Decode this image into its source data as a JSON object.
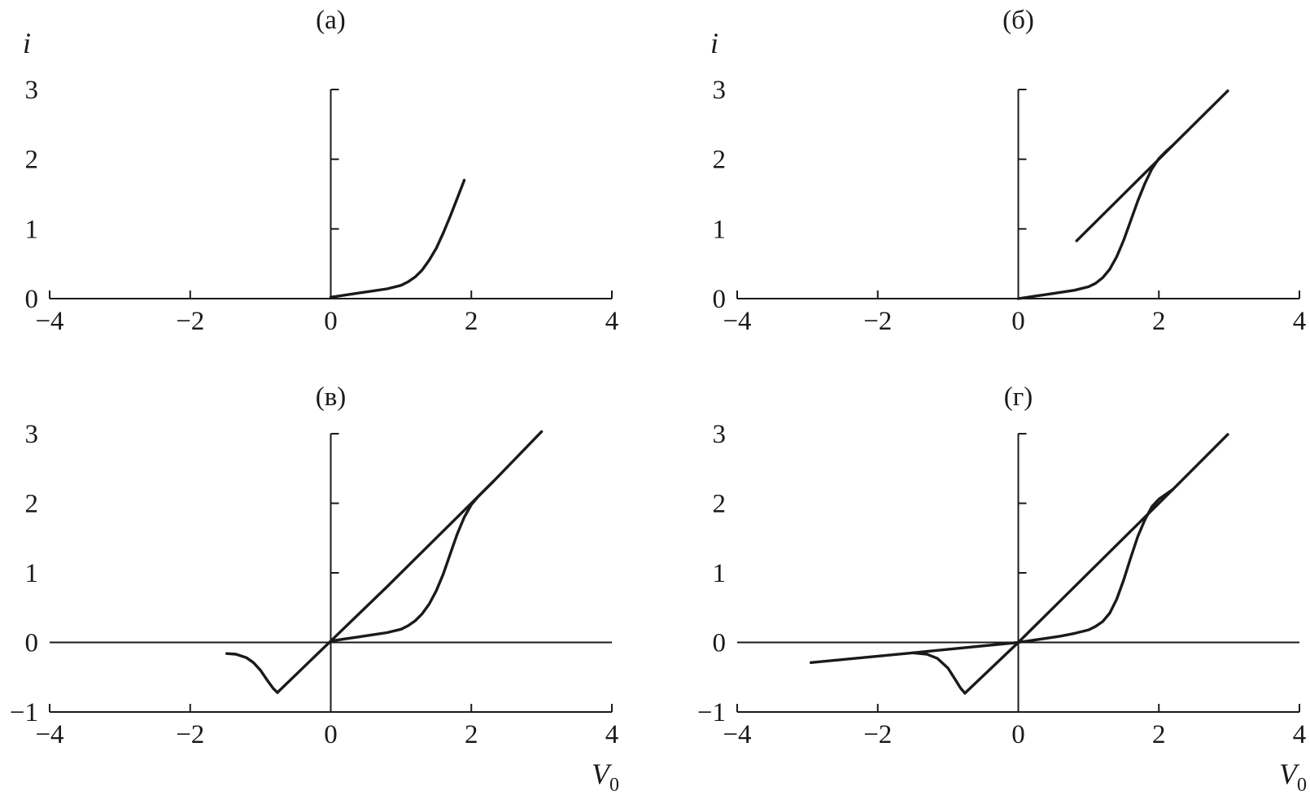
{
  "colors": {
    "ink": "#1a1a1a",
    "background": "#ffffff"
  },
  "chart_data": [
    {
      "type": "line",
      "title": "(а)",
      "ylabel": "i",
      "xlabel": "",
      "xlim": [
        -4,
        4
      ],
      "ylim": [
        0,
        3
      ],
      "xticks": [
        -4,
        -2,
        0,
        2,
        4
      ],
      "yticks": [
        0,
        1,
        2,
        3
      ],
      "grid": false,
      "series": [
        {
          "x": [
            0,
            0.2,
            0.4,
            0.6,
            0.8,
            1.0,
            1.1,
            1.2,
            1.3,
            1.4,
            1.5,
            1.6,
            1.7,
            1.8,
            1.9
          ],
          "y": [
            0.02,
            0.05,
            0.08,
            0.11,
            0.14,
            0.19,
            0.24,
            0.31,
            0.41,
            0.55,
            0.72,
            0.94,
            1.18,
            1.44,
            1.7
          ]
        }
      ]
    },
    {
      "type": "line",
      "title": "(б)",
      "ylabel": "i",
      "xlabel": "",
      "xlim": [
        -4,
        4
      ],
      "ylim": [
        0,
        3
      ],
      "xticks": [
        -4,
        -2,
        0,
        2,
        4
      ],
      "yticks": [
        0,
        1,
        2,
        3
      ],
      "grid": false,
      "series": [
        {
          "x": [
            0,
            0.2,
            0.4,
            0.6,
            0.8,
            1.0,
            1.1,
            1.2,
            1.3,
            1.4,
            1.5,
            1.6,
            1.7,
            1.8,
            1.9,
            2.0,
            2.1,
            2.2
          ],
          "y": [
            0.0,
            0.03,
            0.06,
            0.09,
            0.12,
            0.17,
            0.22,
            0.3,
            0.42,
            0.6,
            0.84,
            1.12,
            1.4,
            1.65,
            1.86,
            2.01,
            2.11,
            2.2
          ]
        },
        {
          "x": [
            0.83,
            1.2,
            1.6,
            2.0,
            2.2,
            2.5,
            2.98
          ],
          "y": [
            0.83,
            1.2,
            1.6,
            2.0,
            2.2,
            2.5,
            2.98
          ]
        }
      ]
    },
    {
      "type": "line",
      "title": "(в)",
      "ylabel": "",
      "xlabel": "V0",
      "xlim": [
        -4,
        4
      ],
      "ylim": [
        -1,
        3
      ],
      "xticks": [
        -4,
        -2,
        0,
        2,
        4
      ],
      "yticks": [
        -1,
        0,
        1,
        2,
        3
      ],
      "grid": false,
      "series": [
        {
          "x": [
            -1.48,
            -1.35,
            -1.2,
            -1.1,
            -1.0,
            -0.9,
            -0.82,
            -0.76
          ],
          "y": [
            -0.16,
            -0.17,
            -0.22,
            -0.29,
            -0.4,
            -0.55,
            -0.66,
            -0.72
          ]
        },
        {
          "x": [
            -0.76,
            0,
            0.8,
            1.6,
            2.32,
            3.0
          ],
          "y": [
            -0.72,
            0.02,
            0.8,
            1.6,
            2.32,
            3.03
          ]
        },
        {
          "x": [
            0,
            0.2,
            0.4,
            0.6,
            0.8,
            1.0,
            1.1,
            1.2,
            1.3,
            1.4,
            1.5,
            1.6,
            1.7,
            1.8,
            1.9,
            2.0,
            2.1,
            2.2,
            2.32
          ],
          "y": [
            0.02,
            0.05,
            0.08,
            0.11,
            0.14,
            0.19,
            0.24,
            0.31,
            0.41,
            0.55,
            0.74,
            0.98,
            1.27,
            1.56,
            1.8,
            1.98,
            2.1,
            2.2,
            2.32
          ]
        }
      ]
    },
    {
      "type": "line",
      "title": "(г)",
      "ylabel": "",
      "xlabel": "V0",
      "xlim": [
        -4,
        4
      ],
      "ylim": [
        -1,
        3
      ],
      "xticks": [
        -4,
        -2,
        0,
        2,
        4
      ],
      "yticks": [
        -1,
        0,
        1,
        2,
        3
      ],
      "grid": false,
      "series": [
        {
          "x": [
            -2.95,
            -1.5,
            0
          ],
          "y": [
            -0.29,
            -0.15,
            0.0
          ]
        },
        {
          "x": [
            -1.5,
            -1.3,
            -1.15,
            -1.0,
            -0.9,
            -0.82,
            -0.76
          ],
          "y": [
            -0.15,
            -0.17,
            -0.23,
            -0.37,
            -0.53,
            -0.66,
            -0.73
          ]
        },
        {
          "x": [
            -0.76,
            0,
            0.8,
            1.6,
            2.2,
            2.98
          ],
          "y": [
            -0.73,
            0.0,
            0.8,
            1.6,
            2.2,
            2.99
          ]
        },
        {
          "x": [
            0,
            0.2,
            0.4,
            0.6,
            0.8,
            1.0,
            1.1,
            1.2,
            1.3,
            1.4,
            1.5,
            1.6,
            1.7,
            1.8,
            1.9,
            2.0,
            2.1,
            2.2
          ],
          "y": [
            0.0,
            0.03,
            0.06,
            0.09,
            0.13,
            0.18,
            0.23,
            0.3,
            0.42,
            0.62,
            0.9,
            1.22,
            1.52,
            1.76,
            1.95,
            2.06,
            2.13,
            2.2
          ]
        }
      ]
    }
  ]
}
